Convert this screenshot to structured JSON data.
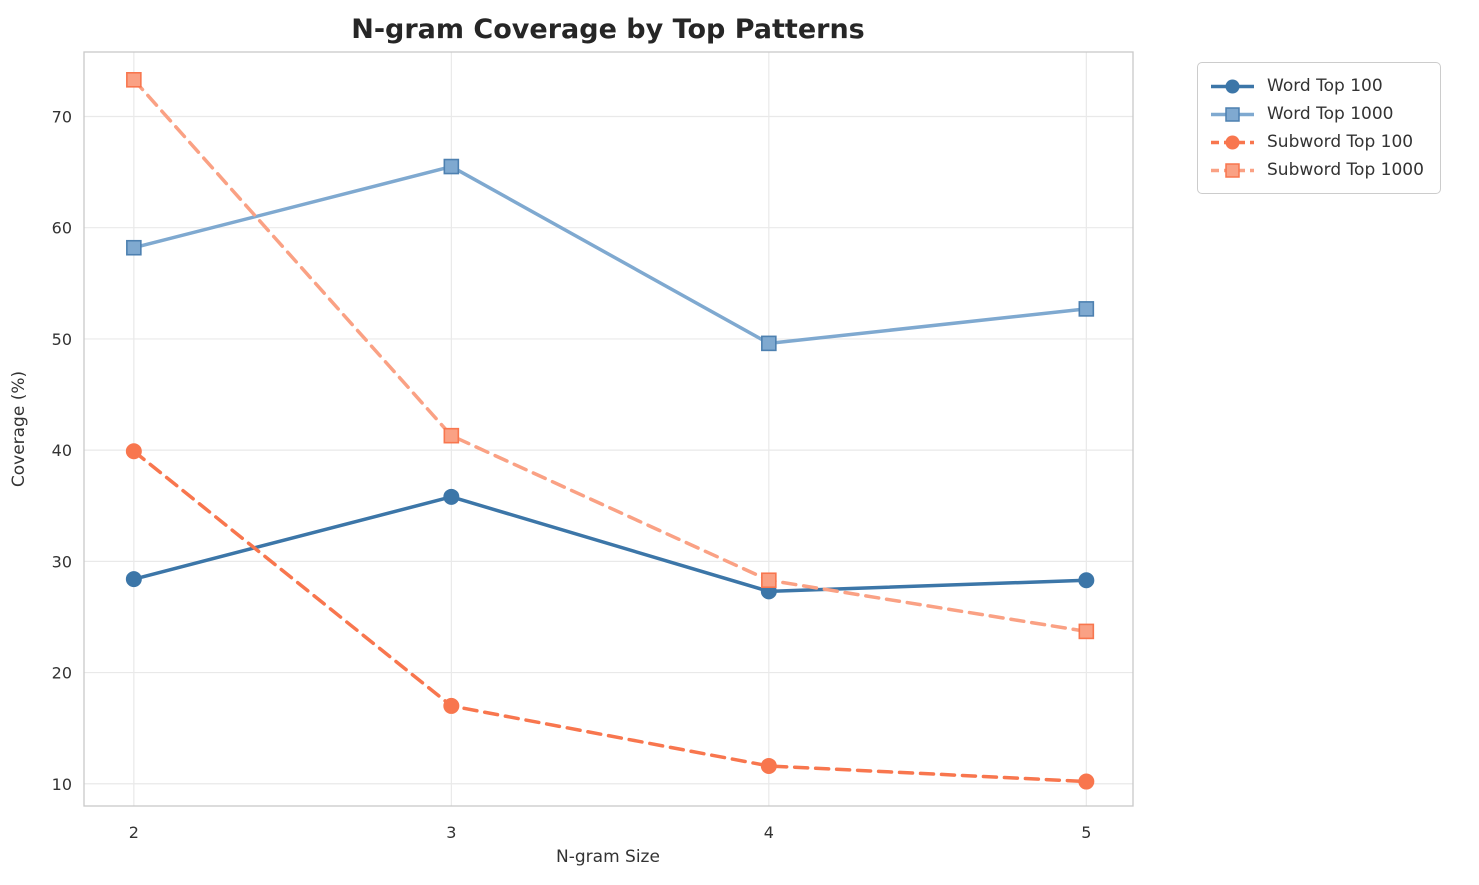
{
  "chart_data": {
    "type": "line",
    "title": "N-gram Coverage by Top Patterns",
    "xlabel": "N-gram Size",
    "ylabel": "Coverage (%)",
    "x": [
      2,
      3,
      4,
      5
    ],
    "xticks": [
      2,
      3,
      4,
      5
    ],
    "yticks": [
      10,
      20,
      30,
      40,
      50,
      60,
      70
    ],
    "xlim": [
      1.843,
      5.147
    ],
    "ylim": [
      8.0,
      75.8
    ],
    "grid": true,
    "legend_position": "outside-upper-right",
    "series": [
      {
        "name": "Word Top 100",
        "color": "#3c76a8",
        "marker_edge": "#3c76a8",
        "line_style": "solid",
        "marker": "circle",
        "values": [
          28.4,
          35.8,
          27.3,
          28.3
        ]
      },
      {
        "name": "Word Top 1000",
        "color": "#7fa9d0",
        "marker_edge": "#4d80b0",
        "line_style": "solid",
        "marker": "square",
        "values": [
          58.2,
          65.5,
          49.6,
          52.7
        ]
      },
      {
        "name": "Subword Top 100",
        "color": "#f8764e",
        "marker_edge": "#f8764e",
        "line_style": "dashed",
        "marker": "circle",
        "values": [
          39.9,
          17.0,
          11.6,
          10.2
        ]
      },
      {
        "name": "Subword Top 1000",
        "color": "#faa184",
        "marker_edge": "#f8764e",
        "line_style": "dashed",
        "marker": "square",
        "values": [
          73.3,
          41.3,
          28.3,
          23.7
        ]
      }
    ]
  },
  "colors": {
    "background": "#ffffff",
    "grid": "#e9e9e9",
    "frame": "#c9c9c9",
    "title_text": "#262626",
    "tick_text": "#333333",
    "legend_border": "#cccccc"
  }
}
